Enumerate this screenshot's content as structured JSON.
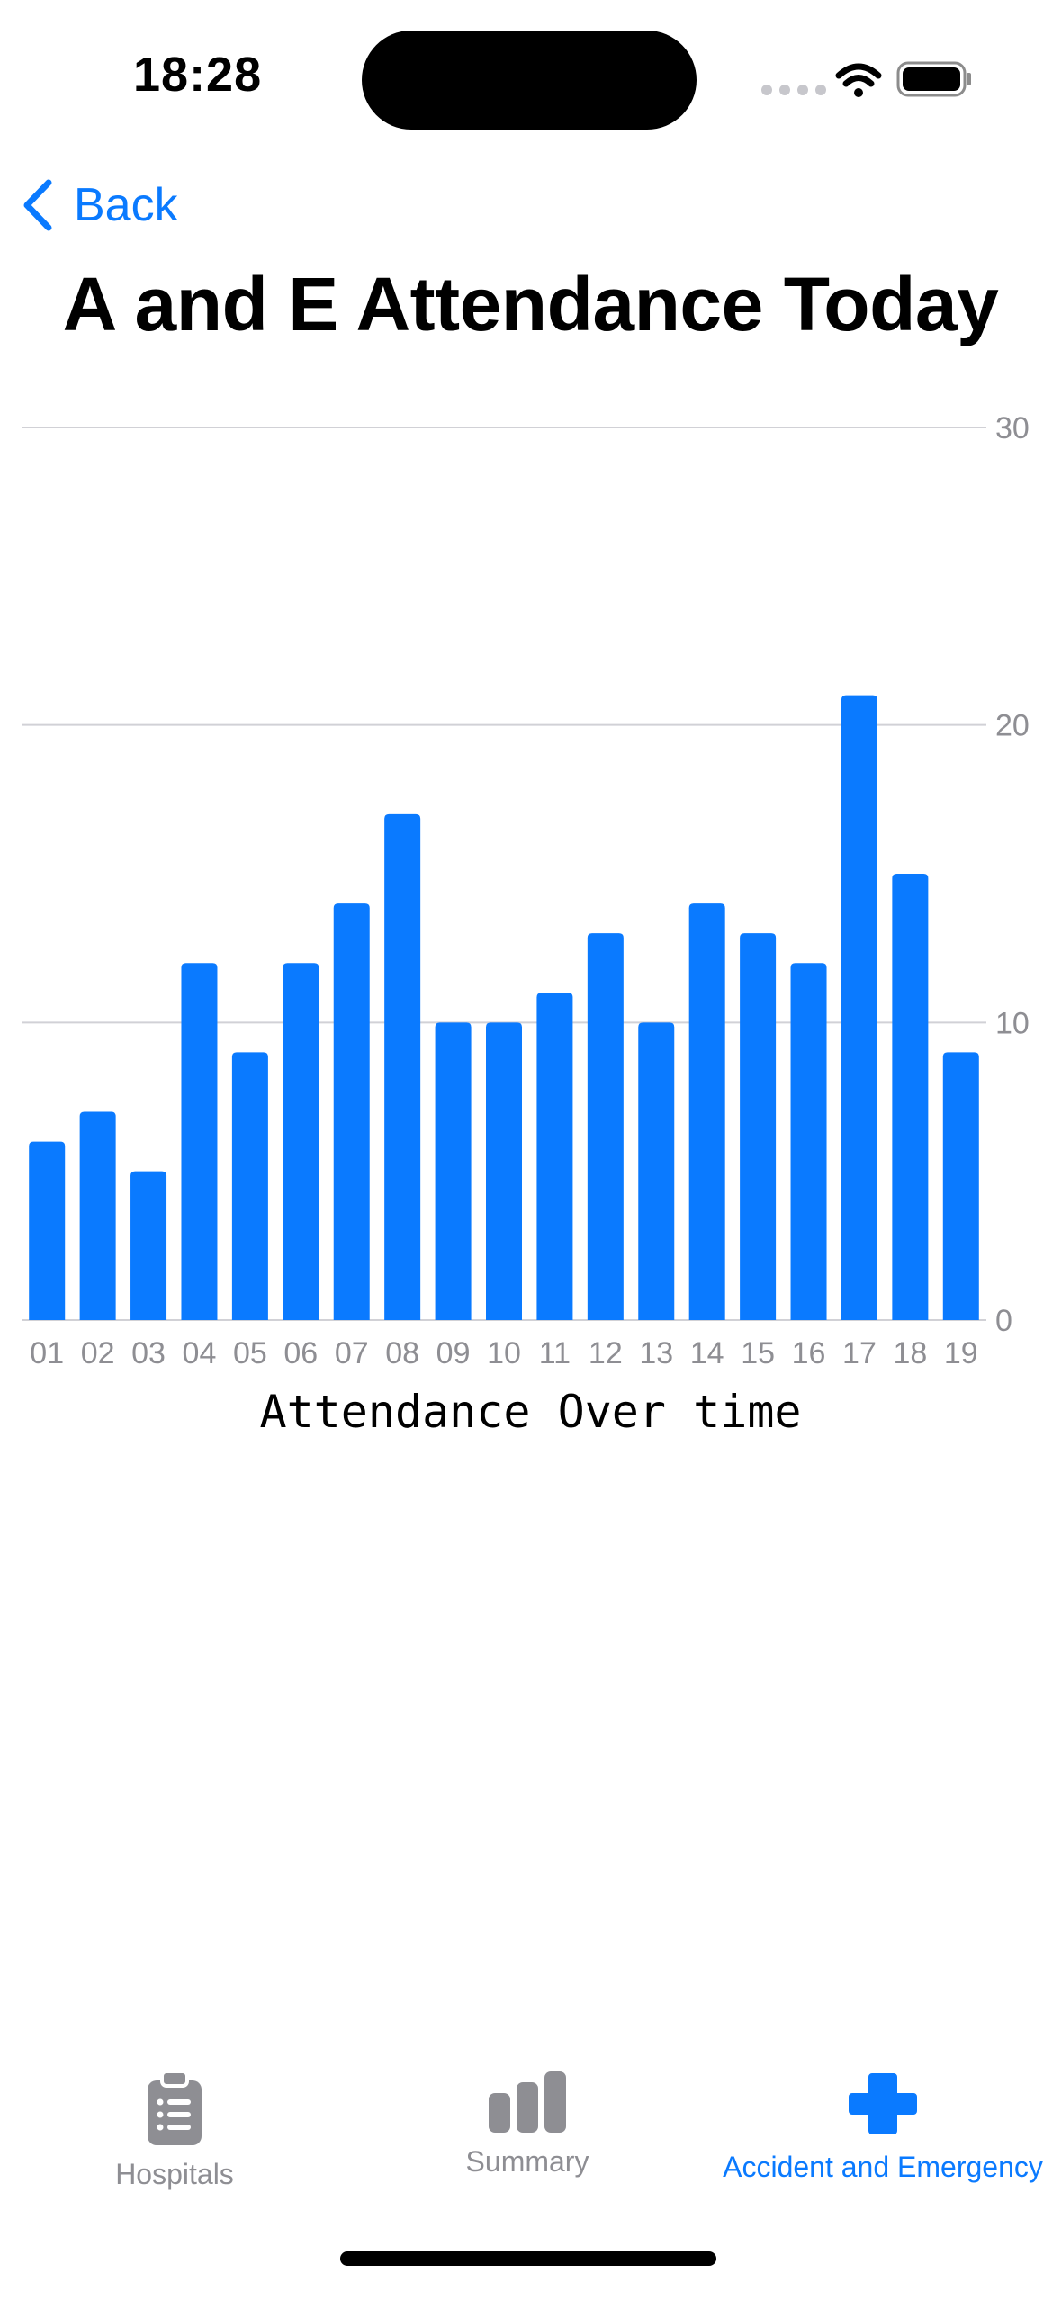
{
  "status_bar": {
    "time": "18:28",
    "icons": [
      "signal-dots-icon",
      "wifi-icon",
      "battery-icon"
    ]
  },
  "nav": {
    "back_label": "Back",
    "title": "A and E Attendance Today"
  },
  "colors": {
    "accent": "#0a7aff",
    "inactive": "#8e8e93",
    "grid": "#d1d1d6",
    "axis_text": "#8e8e93"
  },
  "chart_data": {
    "type": "bar",
    "categories": [
      "01",
      "02",
      "03",
      "04",
      "05",
      "06",
      "07",
      "08",
      "09",
      "10",
      "11",
      "12",
      "13",
      "14",
      "15",
      "16",
      "17",
      "18",
      "19"
    ],
    "values": [
      6,
      7,
      5,
      12,
      9,
      12,
      14,
      17,
      10,
      10,
      11,
      13,
      10,
      14,
      13,
      12,
      21,
      15,
      9
    ],
    "yticks": [
      "0",
      "10",
      "20",
      "30"
    ],
    "ylim": [
      0,
      30
    ],
    "xlabel": "Attendance Over time",
    "ylabel": "",
    "title": "",
    "grid": true,
    "y_axis_side": "right"
  },
  "tabs": [
    {
      "label": "Hospitals",
      "icon": "clipboard-icon",
      "active": false
    },
    {
      "label": "Summary",
      "icon": "bar-chart-icon",
      "active": false
    },
    {
      "label": "Accident and Emergency",
      "icon": "cross-icon",
      "active": true
    }
  ]
}
